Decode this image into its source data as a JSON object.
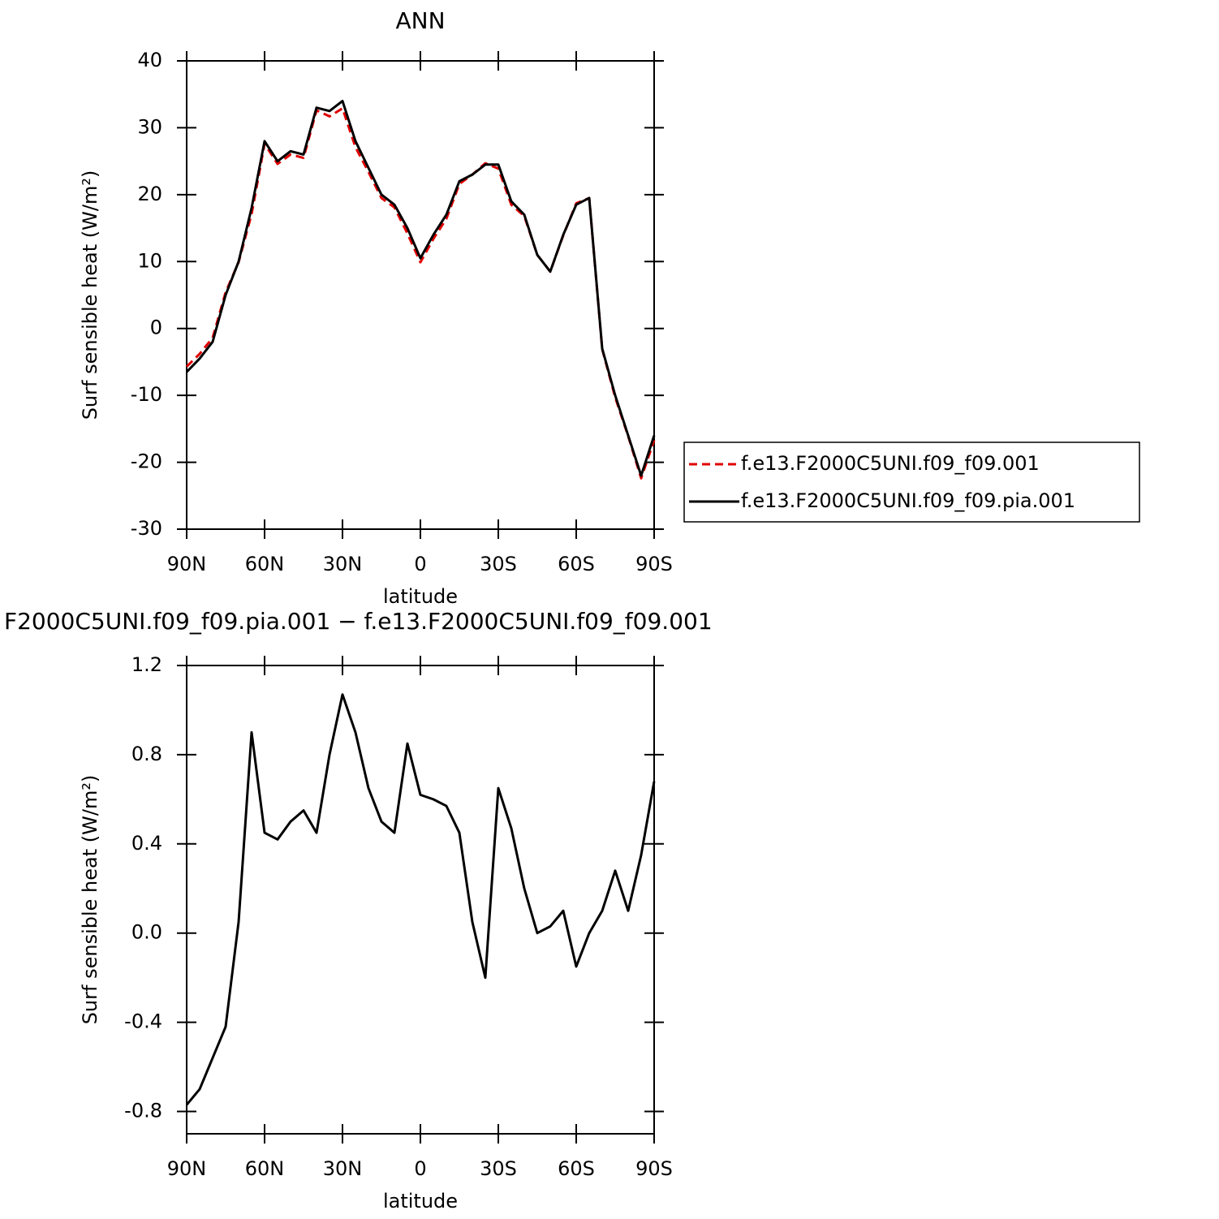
{
  "chart_data": [
    {
      "type": "line",
      "title": "ANN",
      "xlabel": "latitude",
      "ylabel": "Surf sensible heat (W/m²)",
      "x": [
        90,
        85,
        80,
        75,
        70,
        65,
        60,
        55,
        50,
        45,
        40,
        35,
        30,
        25,
        20,
        15,
        10,
        5,
        0,
        -5,
        -10,
        -15,
        -20,
        -25,
        -30,
        -35,
        -40,
        -45,
        -50,
        -55,
        -60,
        -65,
        -70,
        -75,
        -80,
        -85,
        -90
      ],
      "series": [
        {
          "name": "f.e13.F2000C5UNI.f09_f09.001",
          "color": "#e00000",
          "dash": true,
          "values": [
            -5.7,
            -3.8,
            -1.4,
            5.4,
            9.9,
            17.1,
            27.6,
            24.6,
            26,
            25.5,
            32.6,
            31.7,
            32.9,
            27.1,
            23.4,
            19.5,
            18.1,
            14.2,
            9.9,
            13.4,
            16.4,
            21.6,
            23,
            24.7,
            23.9,
            18.5,
            16.8,
            11,
            8.5,
            13.9,
            18.7,
            19.5,
            -3.1,
            -10.3,
            -16.1,
            -22.4,
            -16.7
          ]
        },
        {
          "name": "f.e13.F2000C5UNI.f09_f09.pia.001",
          "color": "#000000",
          "dash": false,
          "values": [
            -6.5,
            -4.5,
            -2,
            5,
            10,
            18,
            28,
            25,
            26.5,
            26,
            33,
            32.5,
            34,
            28,
            24,
            20,
            18.5,
            15,
            10.5,
            14,
            17,
            22,
            23,
            24.5,
            24.5,
            19,
            17,
            11,
            8.5,
            14,
            18.5,
            19.5,
            -3,
            -10,
            -16,
            -22,
            -16
          ]
        }
      ],
      "xlim": [
        90,
        -90
      ],
      "xticks": [
        {
          "value": 90,
          "label": "90N"
        },
        {
          "value": 60,
          "label": "60N"
        },
        {
          "value": 30,
          "label": "30N"
        },
        0,
        {
          "value": -30,
          "label": "30S"
        },
        {
          "value": -60,
          "label": "60S"
        },
        {
          "value": -90,
          "label": "90S"
        }
      ],
      "ylim": [
        -30,
        40
      ],
      "yticks": [
        40,
        30,
        20,
        10,
        0,
        -10,
        -20,
        -30
      ],
      "legend": "right"
    },
    {
      "type": "line",
      "title": "F2000C5UNI.f09_f09.pia.001 − f.e13.F2000C5UNI.f09_f09.001",
      "xlabel": "latitude",
      "ylabel": "Surf sensible heat (W/m²)",
      "x": [
        90,
        85,
        80,
        75,
        70,
        65,
        60,
        55,
        50,
        45,
        40,
        35,
        30,
        25,
        20,
        15,
        10,
        5,
        0,
        -5,
        -10,
        -15,
        -20,
        -25,
        -30,
        -35,
        -40,
        -45,
        -50,
        -55,
        -60,
        -65,
        -70,
        -75,
        -80,
        -85,
        -90
      ],
      "series": [
        {
          "color": "#000000",
          "dash": false,
          "values": [
            -0.77,
            -0.7,
            -0.56,
            -0.42,
            0.05,
            0.9,
            0.45,
            0.42,
            0.5,
            0.55,
            0.45,
            0.8,
            1.07,
            0.9,
            0.65,
            0.5,
            0.45,
            0.85,
            0.62,
            0.6,
            0.57,
            0.45,
            0.05,
            -0.2,
            0.65,
            0.47,
            0.2,
            0,
            0.03,
            0.1,
            -0.15,
            0,
            0.1,
            0.28,
            0.1,
            0.35,
            0.68
          ]
        }
      ],
      "xlim": [
        90,
        -90
      ],
      "xticks": [
        {
          "value": 90,
          "label": "90N"
        },
        {
          "value": 60,
          "label": "60N"
        },
        {
          "value": 30,
          "label": "30N"
        },
        0,
        {
          "value": -30,
          "label": "30S"
        },
        {
          "value": -60,
          "label": "60S"
        },
        {
          "value": -90,
          "label": "90S"
        }
      ],
      "ylim": [
        -0.9,
        1.2
      ],
      "yticks": [
        1.2,
        0.8,
        0.4,
        {
          "value": 0,
          "label": "0.0"
        },
        -0.4,
        -0.8
      ]
    }
  ]
}
